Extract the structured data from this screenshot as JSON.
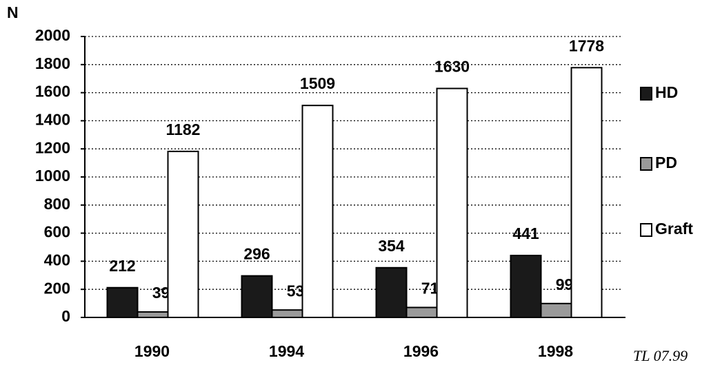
{
  "chart_data": {
    "type": "bar",
    "ylabel": "N",
    "categories": [
      "1990",
      "1994",
      "1996",
      "1998"
    ],
    "series": [
      {
        "name": "HD",
        "color": "#1a1a1a",
        "values": [
          212,
          296,
          354,
          441
        ]
      },
      {
        "name": "PD",
        "color": "#9a9a9a",
        "values": [
          39,
          53,
          71,
          99
        ]
      },
      {
        "name": "Graft",
        "color": "#ffffff",
        "values": [
          1182,
          1509,
          1630,
          1778
        ]
      }
    ],
    "ylim": [
      0,
      2000
    ],
    "yticks": [
      0,
      200,
      400,
      600,
      800,
      1000,
      1200,
      1400,
      1600,
      1800,
      2000
    ],
    "grid": true,
    "legend": "right",
    "annotation": "TL 07.99"
  }
}
